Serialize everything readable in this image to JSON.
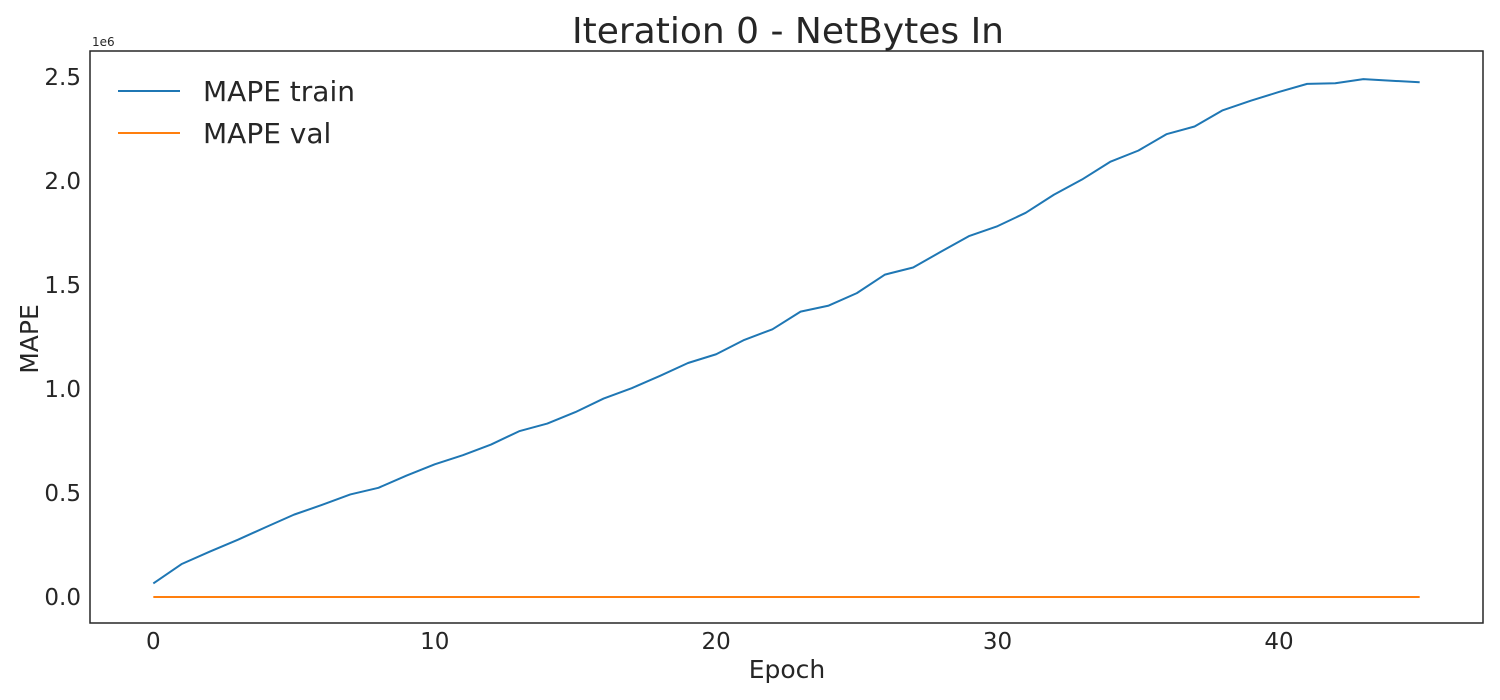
{
  "chart_data": {
    "type": "line",
    "title": "Iteration 0 - NetBytes In",
    "xlabel": "Epoch",
    "ylabel": "MAPE",
    "y_offset_label": "1e6",
    "xlim": [
      -2.25,
      47.25
    ],
    "ylim": [
      -125000,
      2625000
    ],
    "x_ticks": [
      0,
      10,
      20,
      30,
      40
    ],
    "x_tick_labels": [
      "0",
      "10",
      "20",
      "30",
      "40"
    ],
    "y_ticks": [
      0,
      500000,
      1000000,
      1500000,
      2000000,
      2500000
    ],
    "y_tick_labels": [
      "0.0",
      "0.5",
      "1.0",
      "1.5",
      "2.0",
      "2.5"
    ],
    "grid": false,
    "legend_position": "upper-left",
    "x": [
      0,
      1,
      2,
      3,
      4,
      5,
      6,
      7,
      8,
      9,
      10,
      11,
      12,
      13,
      14,
      15,
      16,
      17,
      18,
      19,
      20,
      21,
      22,
      23,
      24,
      25,
      26,
      27,
      28,
      29,
      30,
      31,
      32,
      33,
      34,
      35,
      36,
      37,
      38,
      39,
      40,
      41,
      42,
      43,
      44,
      45
    ],
    "series": [
      {
        "name": "MAPE train",
        "color": "#1f77b4",
        "values": [
          65000,
          158000,
          218000,
          275000,
          336000,
          396000,
          443000,
          493000,
          525000,
          584000,
          638000,
          682000,
          733000,
          797000,
          834000,
          889000,
          954000,
          1004000,
          1063000,
          1125000,
          1167000,
          1236000,
          1287000,
          1372000,
          1401000,
          1461000,
          1550000,
          1584000,
          1661000,
          1736000,
          1783000,
          1847000,
          1934000,
          2007000,
          2092000,
          2146000,
          2225000,
          2262000,
          2340000,
          2386000,
          2428000,
          2467000,
          2470000,
          2490000,
          2482000,
          2475000
        ]
      },
      {
        "name": "MAPE val",
        "color": "#ff7f0e",
        "values": [
          0,
          0,
          0,
          0,
          0,
          0,
          0,
          0,
          0,
          0,
          0,
          0,
          0,
          0,
          0,
          0,
          0,
          0,
          0,
          0,
          0,
          0,
          0,
          0,
          0,
          0,
          0,
          0,
          0,
          0,
          0,
          0,
          0,
          0,
          0,
          0,
          0,
          0,
          0,
          0,
          0,
          0,
          0,
          0,
          0,
          0
        ]
      }
    ]
  }
}
